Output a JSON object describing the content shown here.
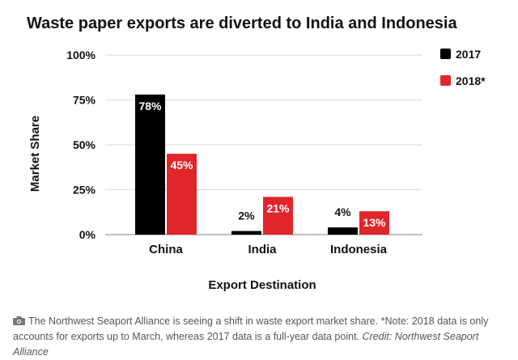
{
  "chart_data": {
    "type": "bar",
    "title": "Waste paper exports are diverted to India and Indonesia",
    "xlabel": "Export Destination",
    "ylabel": "Market Share",
    "categories": [
      "China",
      "India",
      "Indonesia"
    ],
    "ylim": [
      0,
      100
    ],
    "yticks": [
      0,
      25,
      50,
      75,
      100
    ],
    "ytick_labels": [
      "0%",
      "25%",
      "50%",
      "75%",
      "100%"
    ],
    "grid": true,
    "legend_position": "right",
    "series": [
      {
        "name": "2017",
        "color": "#000000",
        "values": [
          78,
          2,
          4
        ],
        "labels": [
          "78%",
          "2%",
          "4%"
        ]
      },
      {
        "name": "2018*",
        "color": "#e0262b",
        "values": [
          45,
          21,
          13
        ],
        "labels": [
          "45%",
          "21%",
          "13%"
        ]
      }
    ]
  },
  "caption": {
    "icon": "camera-icon",
    "text": "The Northwest Seaport Alliance is seeing a shift in waste export market share. *Note: 2018 data is only accounts for exports up to March, whereas 2017 data is a full-year data point.",
    "credit": "Credit: Northwest Seaport Alliance"
  }
}
